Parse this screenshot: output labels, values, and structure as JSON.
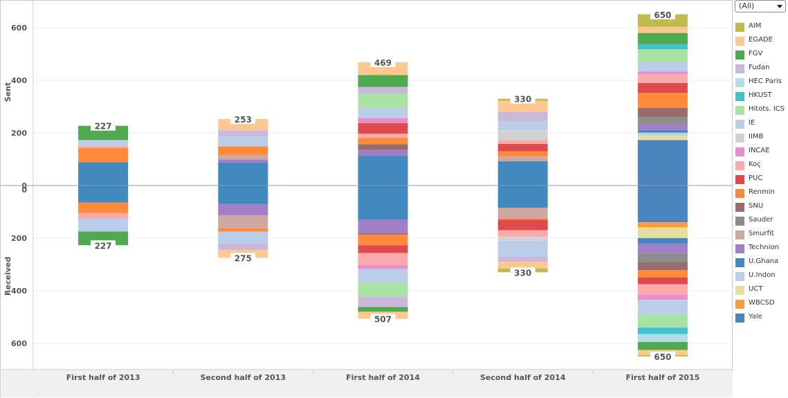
{
  "filter": {
    "selected": "(All)"
  },
  "axes": {
    "top_title": "Sent",
    "bottom_title": "Received"
  },
  "legend": [
    {
      "name": "AIM",
      "color": "#BFBB4F"
    },
    {
      "name": "EGADE",
      "color": "#FFC890"
    },
    {
      "name": "FGV",
      "color": "#4FAA4F"
    },
    {
      "name": "Fudan",
      "color": "#C9B8DA"
    },
    {
      "name": "HEC Paris",
      "color": "#B3DCE6"
    },
    {
      "name": "HKUST",
      "color": "#40C3CE"
    },
    {
      "name": "Hitots. ICS",
      "color": "#A9E3A1"
    },
    {
      "name": "IE",
      "color": "#BACDE9"
    },
    {
      "name": "IIMB",
      "color": "#D1D1D1"
    },
    {
      "name": "INCAE",
      "color": "#E78FCC"
    },
    {
      "name": "Koç",
      "color": "#FAAAAA"
    },
    {
      "name": "PUC",
      "color": "#DE4A4D"
    },
    {
      "name": "Renmin",
      "color": "#FE8A3A"
    },
    {
      "name": "SNU",
      "color": "#9A6C69"
    },
    {
      "name": "Sauder",
      "color": "#8C8C8C"
    },
    {
      "name": "Smurfit",
      "color": "#CDA8A0"
    },
    {
      "name": "Technion",
      "color": "#A17FC7"
    },
    {
      "name": "U.Ghana",
      "color": "#4289BF"
    },
    {
      "name": "U.Indon",
      "color": "#BACDE9"
    },
    {
      "name": "UCT",
      "color": "#E4DEA0"
    },
    {
      "name": "WBCSD",
      "color": "#FE9A40"
    },
    {
      "name": "Yale",
      "color": "#4A85BE"
    }
  ],
  "chart_data": {
    "type": "bar",
    "subtype": "stacked, diverging (Sent above / Received below)",
    "categories": [
      "First half of 2013",
      "Second half of 2013",
      "First half of 2014",
      "Second half of 2014",
      "First half of 2015"
    ],
    "sent_axis": {
      "title": "Sent",
      "ticks": [
        0,
        200,
        400,
        600
      ],
      "range": [
        0,
        675
      ]
    },
    "received_axis": {
      "title": "Received",
      "ticks": [
        0,
        200,
        400,
        600
      ],
      "range": [
        0,
        675
      ]
    },
    "grid": true,
    "legend_position": "right",
    "sent_totals": [
      227,
      253,
      469,
      330,
      650
    ],
    "received_totals": [
      227,
      275,
      507,
      330,
      650
    ],
    "sent": [
      [
        {
          "school": "U.Ghana",
          "value": 88
        },
        {
          "school": "Renmin",
          "value": 55
        },
        {
          "school": "Koç",
          "value": 8
        },
        {
          "school": "IE",
          "value": 20
        },
        {
          "school": "HEC Paris",
          "value": 2
        },
        {
          "school": "FGV",
          "value": 54
        }
      ],
      [
        {
          "school": "U.Ghana",
          "value": 87
        },
        {
          "school": "Technion",
          "value": 12
        },
        {
          "school": "Smurfit",
          "value": 17
        },
        {
          "school": "Renmin",
          "value": 33
        },
        {
          "school": "IE",
          "value": 37
        },
        {
          "school": "Fudan",
          "value": 24
        },
        {
          "school": "EGADE",
          "value": 43
        }
      ],
      [
        {
          "school": "U.Ghana",
          "value": 113
        },
        {
          "school": "Technion",
          "value": 22
        },
        {
          "school": "SNU",
          "value": 22
        },
        {
          "school": "Renmin",
          "value": 25
        },
        {
          "school": "Koç",
          "value": 15
        },
        {
          "school": "PUC",
          "value": 40
        },
        {
          "school": "INCAE",
          "value": 20
        },
        {
          "school": "IE",
          "value": 38
        },
        {
          "school": "Hitots. ICS",
          "value": 55
        },
        {
          "school": "Fudan",
          "value": 25
        },
        {
          "school": "FGV",
          "value": 45
        },
        {
          "school": "EGADE",
          "value": 49
        }
      ],
      [
        {
          "school": "U.Ghana",
          "value": 92
        },
        {
          "school": "Smurfit",
          "value": 18
        },
        {
          "school": "Renmin",
          "value": 20
        },
        {
          "school": "PUC",
          "value": 28
        },
        {
          "school": "Koç",
          "value": 15
        },
        {
          "school": "IIMB",
          "value": 37
        },
        {
          "school": "IE",
          "value": 35
        },
        {
          "school": "Fudan",
          "value": 35
        },
        {
          "school": "EGADE",
          "value": 42
        },
        {
          "school": "AIM",
          "value": 8
        }
      ],
      [
        {
          "school": "Yale",
          "value": 173
        },
        {
          "school": "UCT",
          "value": 18
        },
        {
          "school": "U.Indon",
          "value": 10
        },
        {
          "school": "U.Ghana",
          "value": 10
        },
        {
          "school": "Technion",
          "value": 22
        },
        {
          "school": "Sauder",
          "value": 27
        },
        {
          "school": "SNU",
          "value": 35
        },
        {
          "school": "Renmin",
          "value": 57
        },
        {
          "school": "PUC",
          "value": 38
        },
        {
          "school": "Koç",
          "value": 33
        },
        {
          "school": "INCAE",
          "value": 10
        },
        {
          "school": "IE",
          "value": 37
        },
        {
          "school": "Hitots. ICS",
          "value": 48
        },
        {
          "school": "HKUST",
          "value": 20
        },
        {
          "school": "FGV",
          "value": 42
        },
        {
          "school": "EGADE",
          "value": 23
        },
        {
          "school": "AIM",
          "value": 48
        }
      ]
    ],
    "received": [
      [
        {
          "school": "U.Ghana",
          "value": 65
        },
        {
          "school": "Renmin",
          "value": 40
        },
        {
          "school": "Koç",
          "value": 20
        },
        {
          "school": "IE",
          "value": 50
        },
        {
          "school": "FGV",
          "value": 52
        }
      ],
      [
        {
          "school": "U.Ghana",
          "value": 70
        },
        {
          "school": "Technion",
          "value": 43
        },
        {
          "school": "Smurfit",
          "value": 50
        },
        {
          "school": "Renmin",
          "value": 12
        },
        {
          "school": "IE",
          "value": 45
        },
        {
          "school": "Fudan",
          "value": 25
        },
        {
          "school": "EGADE",
          "value": 30
        }
      ],
      [
        {
          "school": "U.Ghana",
          "value": 130
        },
        {
          "school": "Technion",
          "value": 52
        },
        {
          "school": "SNU",
          "value": 5
        },
        {
          "school": "Renmin",
          "value": 40
        },
        {
          "school": "PUC",
          "value": 30
        },
        {
          "school": "Koç",
          "value": 45
        },
        {
          "school": "INCAE",
          "value": 15
        },
        {
          "school": "IE",
          "value": 55
        },
        {
          "school": "Hitots. ICS",
          "value": 50
        },
        {
          "school": "Fudan",
          "value": 40
        },
        {
          "school": "FGV",
          "value": 18
        },
        {
          "school": "EGADE",
          "value": 27
        }
      ],
      [
        {
          "school": "U.Ghana",
          "value": 85
        },
        {
          "school": "Smurfit",
          "value": 40
        },
        {
          "school": "Renmin",
          "value": 5
        },
        {
          "school": "PUC",
          "value": 40
        },
        {
          "school": "Koç",
          "value": 25
        },
        {
          "school": "IIMB",
          "value": 15
        },
        {
          "school": "IE",
          "value": 60
        },
        {
          "school": "Fudan",
          "value": 20
        },
        {
          "school": "EGADE",
          "value": 25
        },
        {
          "school": "AIM",
          "value": 15
        }
      ],
      [
        {
          "school": "Yale",
          "value": 140
        },
        {
          "school": "WBCSD",
          "value": 20
        },
        {
          "school": "UCT",
          "value": 40
        },
        {
          "school": "U.Ghana",
          "value": 22
        },
        {
          "school": "Technion",
          "value": 35
        },
        {
          "school": "Sauder",
          "value": 35
        },
        {
          "school": "SNU",
          "value": 30
        },
        {
          "school": "Renmin",
          "value": 28
        },
        {
          "school": "PUC",
          "value": 25
        },
        {
          "school": "Koç",
          "value": 40
        },
        {
          "school": "INCAE",
          "value": 20
        },
        {
          "school": "IE",
          "value": 55
        },
        {
          "school": "Hitots. ICS",
          "value": 50
        },
        {
          "school": "HKUST",
          "value": 25
        },
        {
          "school": "HEC Paris",
          "value": 30
        },
        {
          "school": "FGV",
          "value": 30
        },
        {
          "school": "EGADE",
          "value": 20
        },
        {
          "school": "AIM",
          "value": 5
        }
      ]
    ]
  }
}
